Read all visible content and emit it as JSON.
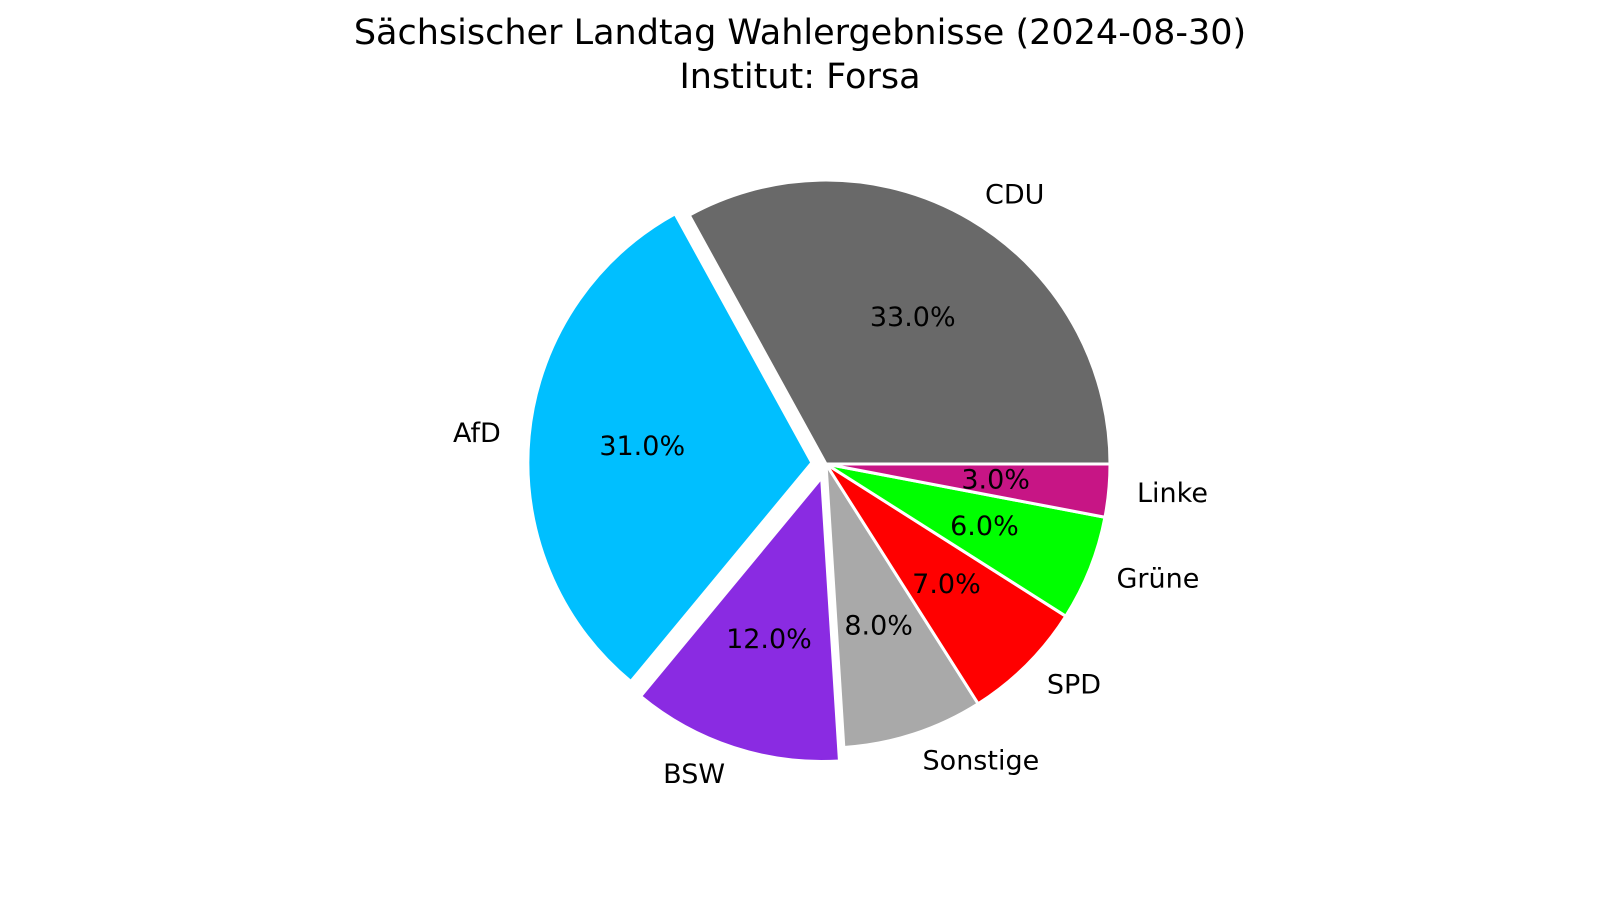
{
  "chart_data": {
    "type": "pie",
    "title": "Sächsischer Landtag Wahlergebnisse (2024-08-30)",
    "subtitle": "Institut: Forsa",
    "slices": [
      {
        "label": "CDU",
        "value": 33.0,
        "pct_label": "33.0%",
        "color": "#696969",
        "exploded": false
      },
      {
        "label": "AfD",
        "value": 31.0,
        "pct_label": "31.0%",
        "color": "#00BFFF",
        "exploded": true
      },
      {
        "label": "BSW",
        "value": 12.0,
        "pct_label": "12.0%",
        "color": "#8A2BE2",
        "exploded": true
      },
      {
        "label": "Sonstige",
        "value": 8.0,
        "pct_label": "8.0%",
        "color": "#A9A9A9",
        "exploded": false
      },
      {
        "label": "SPD",
        "value": 7.0,
        "pct_label": "7.0%",
        "color": "#FF0000",
        "exploded": false
      },
      {
        "label": "Grüne",
        "value": 6.0,
        "pct_label": "6.0%",
        "color": "#00FF00",
        "exploded": false
      },
      {
        "label": "Linke",
        "value": 3.0,
        "pct_label": "3.0%",
        "color": "#C71585",
        "exploded": false
      }
    ],
    "start_angle_deg": 0,
    "direction": "counterclockwise",
    "legend": "none"
  }
}
